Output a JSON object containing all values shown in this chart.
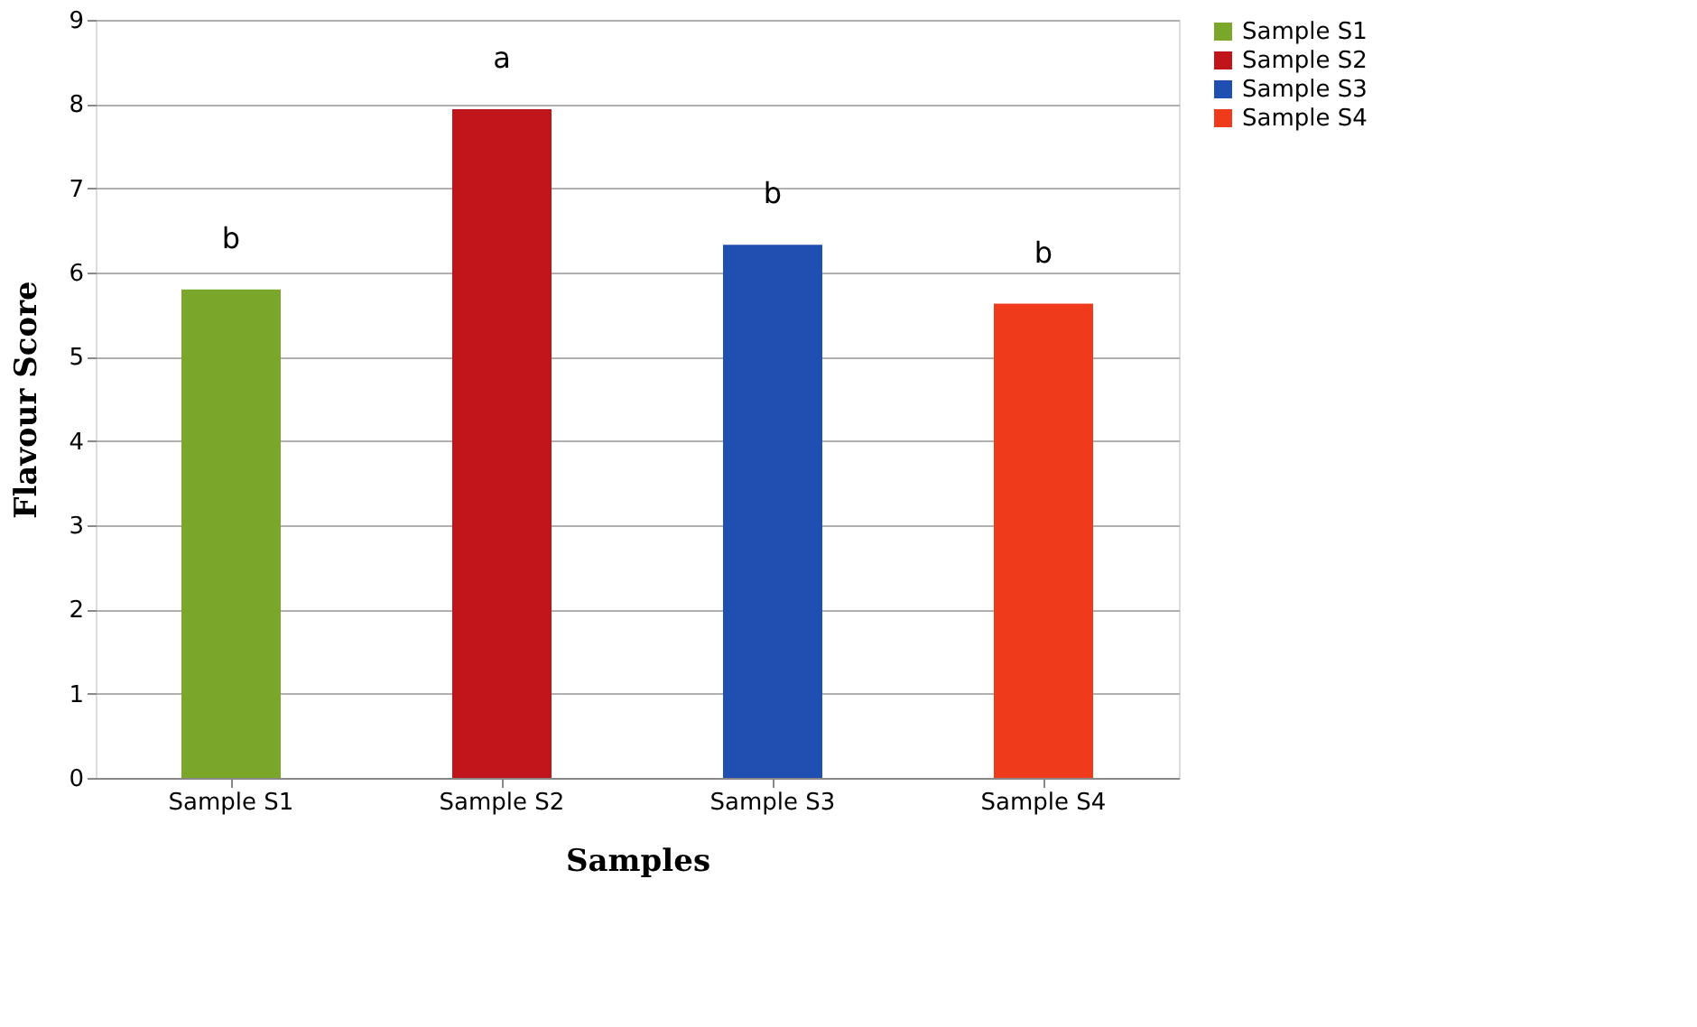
{
  "chart_data": {
    "type": "bar",
    "xlabel": "Samples",
    "ylabel": "Flavour Score",
    "categories": [
      "Sample S1",
      "Sample S2",
      "Sample S3",
      "Sample S4"
    ],
    "series": [
      {
        "name": "Sample S1",
        "color": "#7aa62a",
        "values": [
          5.8,
          null,
          null,
          null
        ]
      },
      {
        "name": "Sample S2",
        "color": "#c0151b",
        "values": [
          null,
          7.94,
          null,
          null
        ]
      },
      {
        "name": "Sample S3",
        "color": "#1f4fb0",
        "values": [
          null,
          null,
          6.33,
          null
        ]
      },
      {
        "name": "Sample S4",
        "color": "#f03a1c",
        "values": [
          null,
          null,
          null,
          5.63
        ]
      }
    ],
    "ylim": [
      0,
      9
    ],
    "yticks": [
      0,
      1,
      2,
      3,
      4,
      5,
      6,
      7,
      8,
      9
    ],
    "grid": "y",
    "legend": "right",
    "annotations": [
      {
        "text": "b",
        "x": "Sample S1",
        "y": 5.8
      },
      {
        "text": "a",
        "x": "Sample S2",
        "y": 7.94
      },
      {
        "text": "b",
        "x": "Sample S3",
        "y": 6.33
      },
      {
        "text": "b",
        "x": "Sample S4",
        "y": 5.63
      }
    ]
  }
}
